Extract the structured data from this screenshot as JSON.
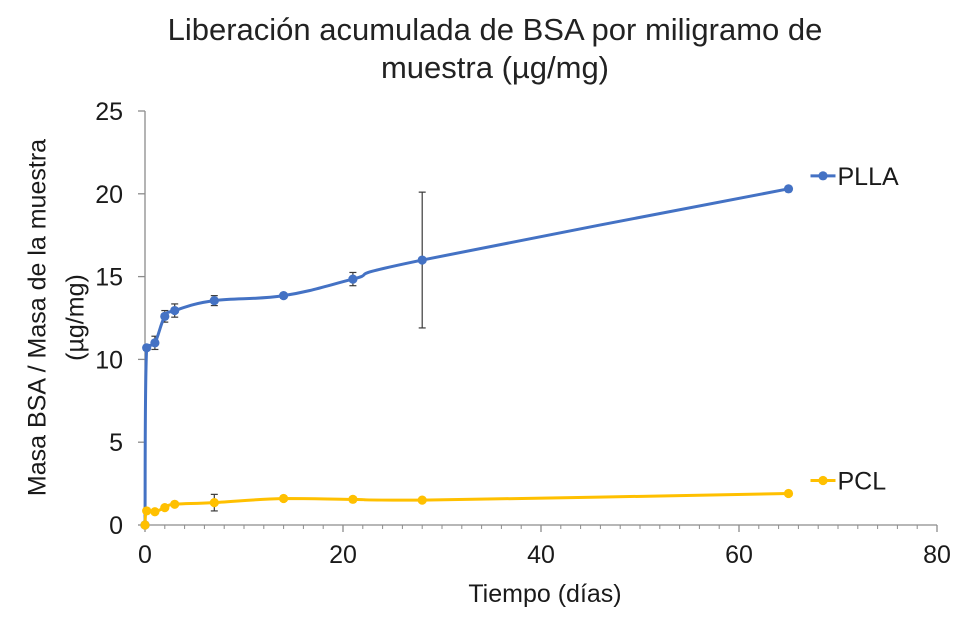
{
  "chart_data": {
    "type": "line",
    "title_lines": [
      "Liberación acumulada de BSA por miligramo de",
      "muestra (µg/mg)"
    ],
    "xlabel": "Tiempo (días)",
    "ylabel_lines": [
      "Masa BSA / Masa de la muestra",
      "(µg/mg)"
    ],
    "xlim": [
      0,
      80
    ],
    "ylim": [
      0,
      25
    ],
    "x_ticks": [
      0,
      20,
      40,
      60,
      80
    ],
    "y_ticks": [
      0,
      5,
      10,
      15,
      20,
      25
    ],
    "x_tick_labels": [
      "0",
      "20",
      "40",
      "60",
      "80"
    ],
    "y_tick_labels": [
      "0",
      "5",
      "10",
      "15",
      "20",
      "25"
    ],
    "grid": false,
    "legend": "inline labels at line ends",
    "series": [
      {
        "name": "PLLA",
        "color": "#4472C4",
        "points": [
          {
            "x": 0,
            "y": 0
          },
          {
            "x": 0.17,
            "y": 10.7,
            "err": 0.15
          },
          {
            "x": 1,
            "y": 11.0,
            "err": 0.4
          },
          {
            "x": 2,
            "y": 12.6,
            "err": 0.35
          },
          {
            "x": 3,
            "y": 12.95,
            "err": 0.4
          },
          {
            "x": 7,
            "y": 13.55,
            "err": 0.3
          },
          {
            "x": 14,
            "y": 13.85,
            "err": 0.15
          },
          {
            "x": 21,
            "y": 14.85,
            "err": 0.4
          },
          {
            "x": 28,
            "y": 16.0,
            "err": 4.1
          },
          {
            "x": 65,
            "y": 20.3,
            "err": 0
          }
        ]
      },
      {
        "name": "PCL",
        "color": "#FFC000",
        "points": [
          {
            "x": 0,
            "y": 0
          },
          {
            "x": 0.17,
            "y": 0.85
          },
          {
            "x": 1,
            "y": 0.8
          },
          {
            "x": 2,
            "y": 1.05
          },
          {
            "x": 3,
            "y": 1.25
          },
          {
            "x": 7,
            "y": 1.35,
            "err": 0.5
          },
          {
            "x": 14,
            "y": 1.6
          },
          {
            "x": 21,
            "y": 1.55
          },
          {
            "x": 28,
            "y": 1.5
          },
          {
            "x": 65,
            "y": 1.9
          }
        ]
      }
    ]
  }
}
